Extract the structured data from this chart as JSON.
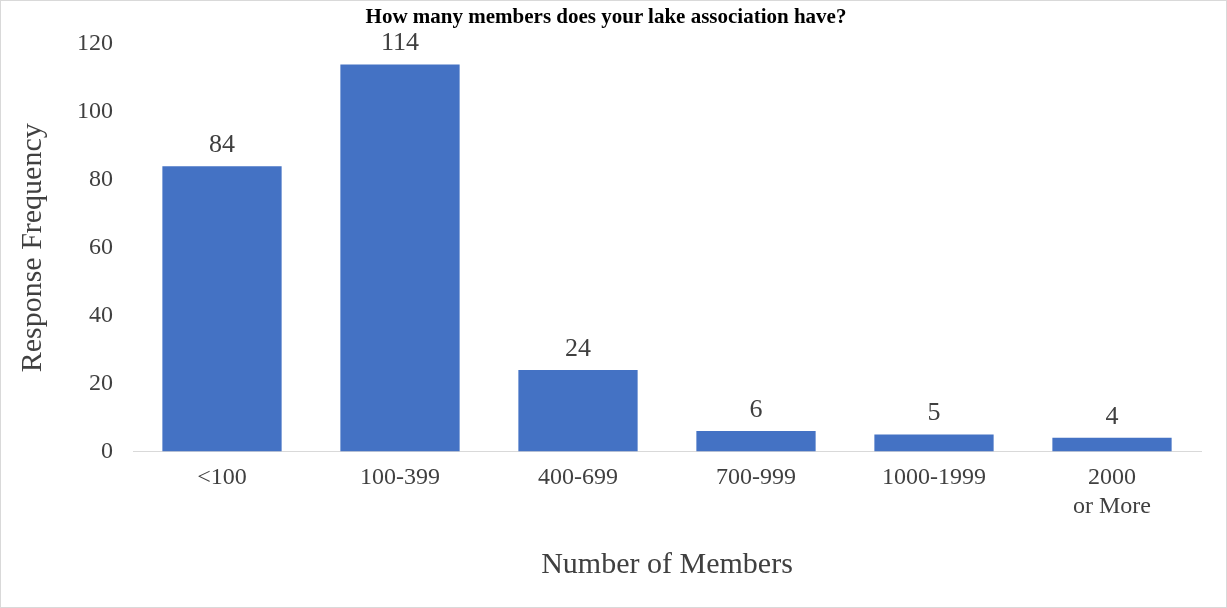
{
  "chart_data": {
    "type": "bar",
    "title": "How many members does your lake association have?",
    "categories": [
      "<100",
      "100-399",
      "400-699",
      "700-999",
      "1000-1999",
      "2000 or More"
    ],
    "values": [
      84,
      114,
      24,
      6,
      5,
      4
    ],
    "color": "#4472c4",
    "xlabel": "Number of Members",
    "ylabel": "Response Frequency",
    "ylim": [
      0,
      120
    ],
    "yticks": [
      0,
      20,
      40,
      60,
      80,
      100,
      120
    ],
    "grid": false,
    "legend": false,
    "data_labels": true
  }
}
